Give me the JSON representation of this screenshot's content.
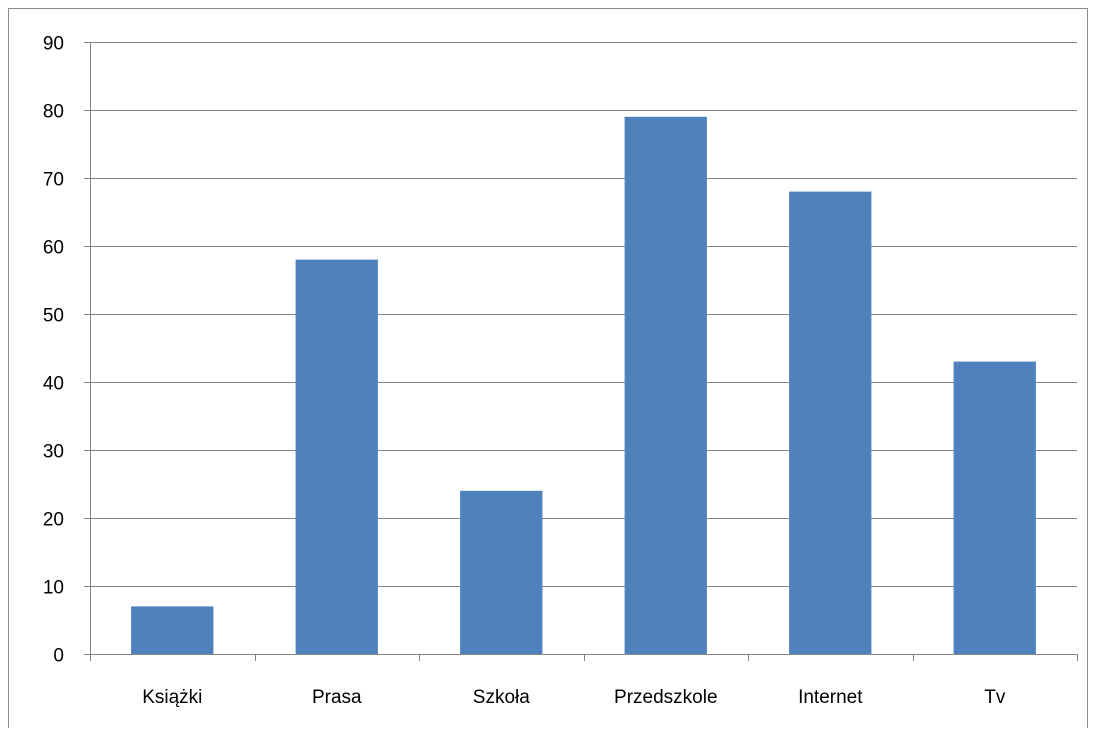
{
  "colors": {
    "bar": "#4f81bd",
    "gridline": "#868686",
    "axis": "#868686",
    "text": "#000000"
  },
  "chart_data": {
    "type": "bar",
    "categories": [
      "Książki",
      "Prasa",
      "Szkoła",
      "Przedszkole",
      "Internet",
      "Tv"
    ],
    "values": [
      7,
      58,
      24,
      79,
      68,
      43
    ],
    "title": "",
    "xlabel": "",
    "ylabel": "",
    "ylim": [
      0,
      90
    ],
    "yticks": [
      0,
      10,
      20,
      30,
      40,
      50,
      60,
      70,
      80,
      90
    ],
    "grid": true,
    "legend": "none"
  }
}
